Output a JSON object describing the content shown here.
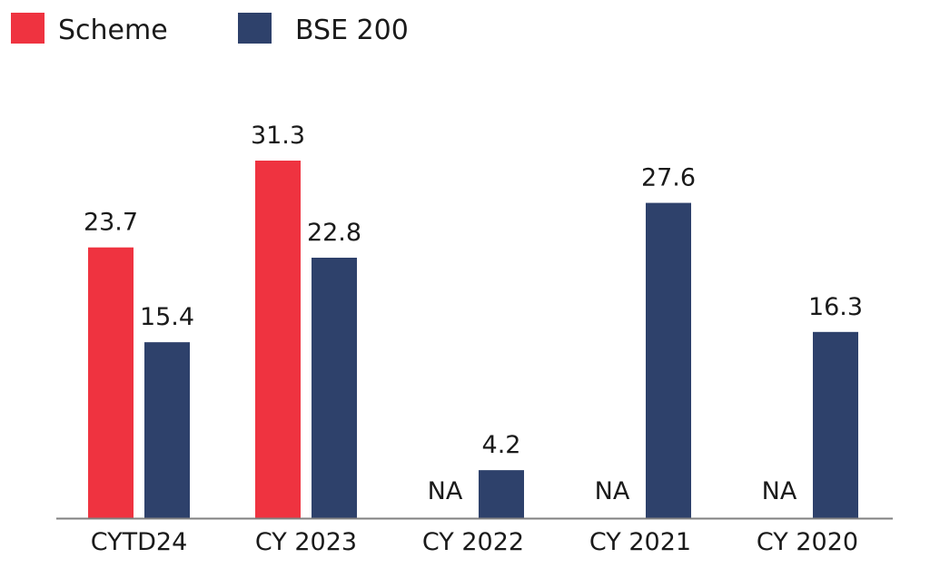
{
  "chart_data": {
    "type": "bar",
    "categories": [
      "CYTD24",
      "CY 2023",
      "CY 2022",
      "CY 2021",
      "CY 2020"
    ],
    "series": [
      {
        "name": "Scheme",
        "color": "#ef3340",
        "values": [
          23.7,
          31.3,
          null,
          null,
          null
        ],
        "labels": [
          "23.7",
          "31.3",
          "NA",
          "NA",
          "NA"
        ]
      },
      {
        "name": "BSE 200",
        "color": "#2e416b",
        "values": [
          15.4,
          22.8,
          4.2,
          27.6,
          16.3
        ],
        "labels": [
          "15.4",
          "22.8",
          "4.2",
          "27.6",
          "16.3"
        ]
      }
    ],
    "title": "",
    "xlabel": "",
    "ylabel": "",
    "ylim": [
      0,
      31.3
    ],
    "grid": false,
    "legend_position": "top-left",
    "axis_color": "#808080"
  }
}
